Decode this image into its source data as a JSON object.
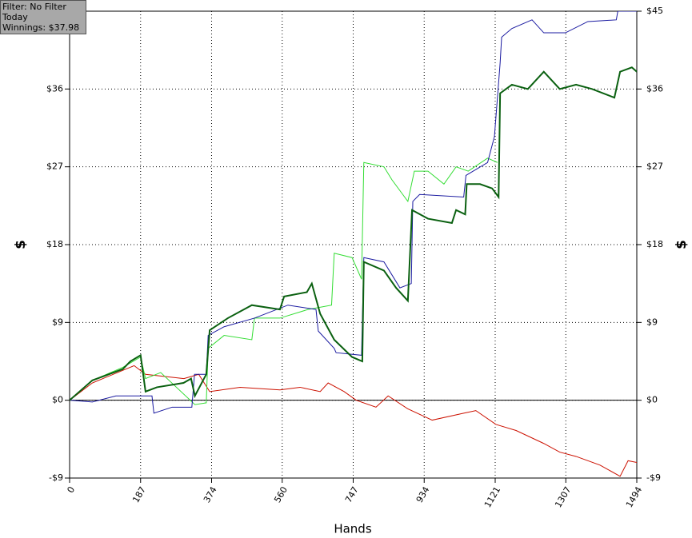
{
  "chart_data": {
    "type": "line",
    "annotations": [
      "Filter: No Filter",
      "Today",
      "Winnings: $37.98"
    ],
    "x_label": "Hands",
    "y_label": "$",
    "y2_label": "$",
    "xlim": [
      0,
      1494
    ],
    "xticks": [
      0,
      187,
      374,
      560,
      747,
      934,
      1121,
      1307,
      1494
    ],
    "ylim": [
      -9,
      45
    ],
    "yticks": [
      {
        "value": -9,
        "label": "-$9"
      },
      {
        "value": 0,
        "label": "$0"
      },
      {
        "value": 9,
        "label": "$9"
      },
      {
        "value": 18,
        "label": "$18"
      },
      {
        "value": 27,
        "label": "$27"
      },
      {
        "value": 36,
        "label": "$36"
      },
      {
        "value": 45,
        "label": "$45"
      }
    ],
    "y2lim": [
      -9,
      45
    ],
    "y2ticks": [
      {
        "value": -9,
        "label": "-$9"
      },
      {
        "value": 0,
        "label": "$0"
      },
      {
        "value": 9,
        "label": "$9"
      },
      {
        "value": 18,
        "label": "$18"
      },
      {
        "value": 27,
        "label": "$27"
      },
      {
        "value": 36,
        "label": "$36"
      },
      {
        "value": 45,
        "label": "$45"
      }
    ],
    "grid": true,
    "series": [
      {
        "color": "#cc1100",
        "width": 1,
        "x": [
          0,
          60,
          170,
          200,
          301,
          340,
          369,
          449,
          554,
          607,
          660,
          681,
          723,
          755,
          807,
          839,
          891,
          955,
          1038,
          1070,
          1123,
          1176,
          1249,
          1291,
          1334,
          1397,
          1450,
          1471,
          1494
        ],
        "values": [
          0,
          2,
          4,
          3,
          2.5,
          3,
          1,
          1.5,
          1.2,
          1.5,
          1,
          2,
          1,
          0,
          -0.8,
          0.5,
          -1,
          -2.3,
          -1.5,
          -1.2,
          -2.8,
          -3.5,
          -5,
          -6,
          -6.5,
          -7.5,
          -8.8,
          -7,
          -7.2
        ]
      },
      {
        "color": "#33dd33",
        "width": 1,
        "x": [
          0,
          60,
          140,
          187,
          200,
          240,
          330,
          360,
          365,
          407,
          480,
          487,
          554,
          628,
          690,
          697,
          744,
          769,
          775,
          828,
          849,
          891,
          908,
          944,
          986,
          1018,
          1050,
          1101,
          1127
        ],
        "values": [
          0,
          2.3,
          3.8,
          5,
          2.5,
          3.2,
          -0.5,
          -0.3,
          6,
          7.5,
          7,
          9.5,
          9.5,
          10.5,
          11,
          17,
          16.5,
          14,
          27.5,
          27,
          25.5,
          23,
          26.5,
          26.5,
          25,
          27,
          26.5,
          28,
          27.5
        ]
      },
      {
        "color": "#1a1aa0",
        "width": 1,
        "x": [
          0,
          60,
          122,
          217,
          222,
          270,
          322,
          329,
          360,
          365,
          407,
          487,
          575,
          649,
          655,
          697,
          702,
          769,
          775,
          828,
          870,
          900,
          904,
          922,
          1038,
          1044,
          1101,
          1119,
          1134,
          1138,
          1165,
          1218,
          1249,
          1306,
          1365,
          1440,
          1444,
          1494
        ],
        "values": [
          0,
          -0.2,
          0.5,
          0.5,
          -1.5,
          -0.8,
          -0.8,
          3,
          3,
          7.5,
          8.5,
          9.5,
          11,
          10.5,
          8,
          6,
          5.5,
          5.2,
          16.5,
          16,
          13,
          13.5,
          23,
          23.8,
          23.5,
          26,
          27.5,
          30.5,
          39,
          42,
          43,
          44,
          42.5,
          42.5,
          43.8,
          44,
          45,
          45
        ]
      },
      {
        "color": "#0a6010",
        "width": 2,
        "x": [
          0,
          60,
          140,
          160,
          187,
          200,
          230,
          300,
          320,
          330,
          360,
          369,
          417,
          480,
          554,
          565,
          625,
          638,
          660,
          697,
          744,
          771,
          775,
          828,
          860,
          891,
          902,
          944,
          1007,
          1018,
          1042,
          1046,
          1081,
          1113,
          1130,
          1134,
          1165,
          1207,
          1249,
          1291,
          1334,
          1376,
          1435,
          1450,
          1481,
          1494
        ],
        "values": [
          0,
          2.3,
          3.6,
          4.5,
          5.2,
          1,
          1.5,
          2,
          2.5,
          0.5,
          3,
          8.1,
          9.5,
          11,
          10.5,
          12,
          12.5,
          13.5,
          10,
          7,
          5,
          4.5,
          16,
          15,
          13,
          11.5,
          22,
          21,
          20.5,
          22,
          21.5,
          25,
          25,
          24.5,
          23.5,
          35.5,
          36.5,
          36,
          38,
          36,
          36.5,
          36,
          35,
          38,
          38.5,
          38
        ]
      }
    ]
  }
}
